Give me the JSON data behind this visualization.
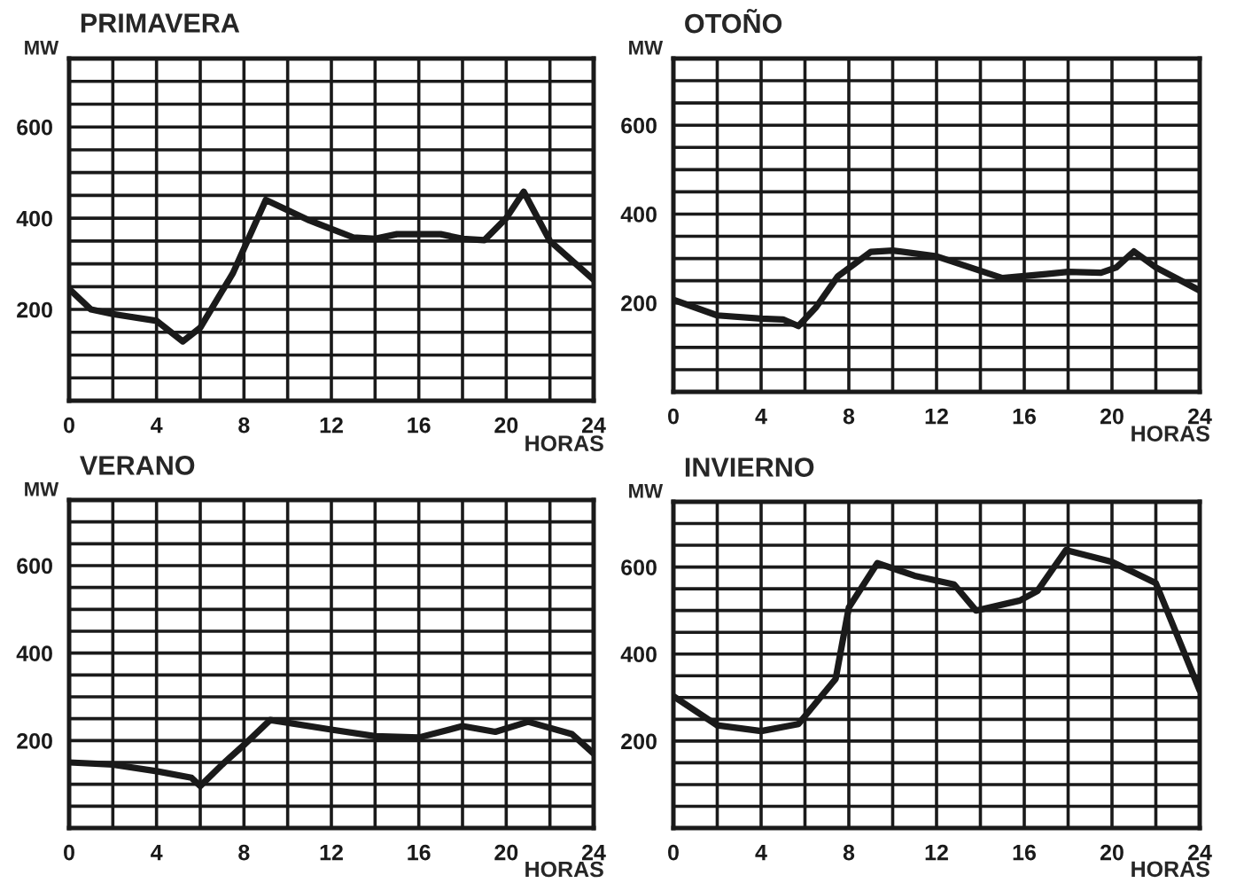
{
  "chart_data": [
    {
      "type": "line",
      "title": "PRIMAVERA",
      "xlabel": "HORAS",
      "ylabel": "MW",
      "grid": true,
      "xlim": [
        0,
        24
      ],
      "ylim": [
        0,
        750
      ],
      "xticks": [
        0,
        {
          "value": 2,
          "label": null
        },
        4,
        {
          "value": 6,
          "label": null
        },
        8,
        {
          "value": 10,
          "label": null
        },
        12,
        {
          "value": 14,
          "label": null
        },
        16,
        {
          "value": 18,
          "label": null
        },
        20,
        {
          "value": 22,
          "label": null
        },
        24
      ],
      "yticks": [
        {
          "value": 0,
          "label": null
        },
        {
          "value": 50,
          "label": null
        },
        {
          "value": 100,
          "label": null
        },
        {
          "value": 150,
          "label": null
        },
        200,
        {
          "value": 250,
          "label": null
        },
        {
          "value": 300,
          "label": null
        },
        {
          "value": 350,
          "label": null
        },
        400,
        {
          "value": 450,
          "label": null
        },
        {
          "value": 500,
          "label": null
        },
        {
          "value": 550,
          "label": null
        },
        600,
        {
          "value": 650,
          "label": null
        },
        {
          "value": 700,
          "label": null
        }
      ],
      "series": [
        {
          "color": "#1a1a1a",
          "x": [
            0,
            1,
            2,
            4,
            5.2,
            6,
            7.5,
            9,
            11,
            13,
            14,
            15,
            17,
            18,
            19,
            20,
            20.8,
            22,
            24
          ],
          "values": [
            245,
            200,
            190,
            175,
            130,
            160,
            280,
            440,
            395,
            358,
            355,
            365,
            365,
            355,
            352,
            400,
            458,
            350,
            265
          ]
        }
      ]
    },
    {
      "type": "line",
      "title": "OTOÑO",
      "xlabel": "HORAS",
      "ylabel": "MW",
      "grid": true,
      "xlim": [
        0,
        24
      ],
      "ylim": [
        0,
        750
      ],
      "xticks": [
        0,
        {
          "value": 2,
          "label": null
        },
        4,
        {
          "value": 6,
          "label": null
        },
        8,
        {
          "value": 10,
          "label": null
        },
        12,
        {
          "value": 14,
          "label": null
        },
        16,
        {
          "value": 18,
          "label": null
        },
        20,
        {
          "value": 22,
          "label": null
        },
        24
      ],
      "yticks": [
        {
          "value": 0,
          "label": null
        },
        {
          "value": 50,
          "label": null
        },
        {
          "value": 100,
          "label": null
        },
        {
          "value": 150,
          "label": null
        },
        200,
        {
          "value": 250,
          "label": null
        },
        {
          "value": 300,
          "label": null
        },
        {
          "value": 350,
          "label": null
        },
        400,
        {
          "value": 450,
          "label": null
        },
        {
          "value": 500,
          "label": null
        },
        {
          "value": 550,
          "label": null
        },
        600,
        {
          "value": 650,
          "label": null
        },
        {
          "value": 700,
          "label": null
        }
      ],
      "series": [
        {
          "color": "#1a1a1a",
          "x": [
            0,
            2,
            4,
            5,
            5.7,
            6.5,
            7.5,
            9,
            10,
            12,
            15,
            17,
            18,
            19.5,
            20.2,
            21,
            22,
            24
          ],
          "values": [
            207,
            172,
            165,
            163,
            148,
            190,
            260,
            315,
            318,
            305,
            256,
            265,
            270,
            268,
            280,
            316,
            280,
            228
          ]
        }
      ]
    },
    {
      "type": "line",
      "title": "VERANO",
      "xlabel": "HORAS",
      "ylabel": "MW",
      "grid": true,
      "xlim": [
        0,
        24
      ],
      "ylim": [
        0,
        750
      ],
      "xticks": [
        0,
        {
          "value": 2,
          "label": null
        },
        4,
        {
          "value": 6,
          "label": null
        },
        8,
        {
          "value": 10,
          "label": null
        },
        12,
        {
          "value": 14,
          "label": null
        },
        16,
        {
          "value": 18,
          "label": null
        },
        20,
        {
          "value": 22,
          "label": null
        },
        24
      ],
      "yticks": [
        {
          "value": 0,
          "label": null
        },
        {
          "value": 50,
          "label": null
        },
        {
          "value": 100,
          "label": null
        },
        {
          "value": 150,
          "label": null
        },
        200,
        {
          "value": 250,
          "label": null
        },
        {
          "value": 300,
          "label": null
        },
        {
          "value": 350,
          "label": null
        },
        400,
        {
          "value": 450,
          "label": null
        },
        {
          "value": 500,
          "label": null
        },
        {
          "value": 550,
          "label": null
        },
        600,
        {
          "value": 650,
          "label": null
        },
        {
          "value": 700,
          "label": null
        }
      ],
      "series": [
        {
          "color": "#1a1a1a",
          "x": [
            0,
            2,
            4,
            5.6,
            6,
            7,
            8,
            9.2,
            12,
            14,
            16,
            18,
            19.5,
            21,
            23,
            24
          ],
          "values": [
            150,
            145,
            130,
            115,
            96,
            145,
            190,
            247,
            225,
            210,
            207,
            233,
            220,
            243,
            215,
            170
          ]
        }
      ]
    },
    {
      "type": "line",
      "title": "INVIERNO",
      "xlabel": "HORAS",
      "ylabel": "MW",
      "grid": true,
      "xlim": [
        0,
        24
      ],
      "ylim": [
        0,
        750
      ],
      "xticks": [
        0,
        {
          "value": 2,
          "label": null
        },
        4,
        {
          "value": 6,
          "label": null
        },
        8,
        {
          "value": 10,
          "label": null
        },
        12,
        {
          "value": 14,
          "label": null
        },
        16,
        {
          "value": 18,
          "label": null
        },
        20,
        {
          "value": 22,
          "label": null
        },
        24
      ],
      "yticks": [
        {
          "value": 0,
          "label": null
        },
        {
          "value": 50,
          "label": null
        },
        {
          "value": 100,
          "label": null
        },
        {
          "value": 150,
          "label": null
        },
        200,
        {
          "value": 250,
          "label": null
        },
        {
          "value": 300,
          "label": null
        },
        {
          "value": 350,
          "label": null
        },
        400,
        {
          "value": 450,
          "label": null
        },
        {
          "value": 500,
          "label": null
        },
        {
          "value": 550,
          "label": null
        },
        600,
        {
          "value": 650,
          "label": null
        },
        {
          "value": 700,
          "label": null
        }
      ],
      "series": [
        {
          "color": "#1a1a1a",
          "x": [
            0,
            2,
            4,
            5.7,
            7.4,
            8,
            9.3,
            11,
            12.8,
            13.8,
            15.8,
            16.6,
            17.9,
            20,
            22,
            24
          ],
          "values": [
            303,
            236,
            223,
            239,
            343,
            507,
            609,
            580,
            560,
            500,
            523,
            545,
            639,
            612,
            563,
            316
          ]
        }
      ]
    }
  ]
}
